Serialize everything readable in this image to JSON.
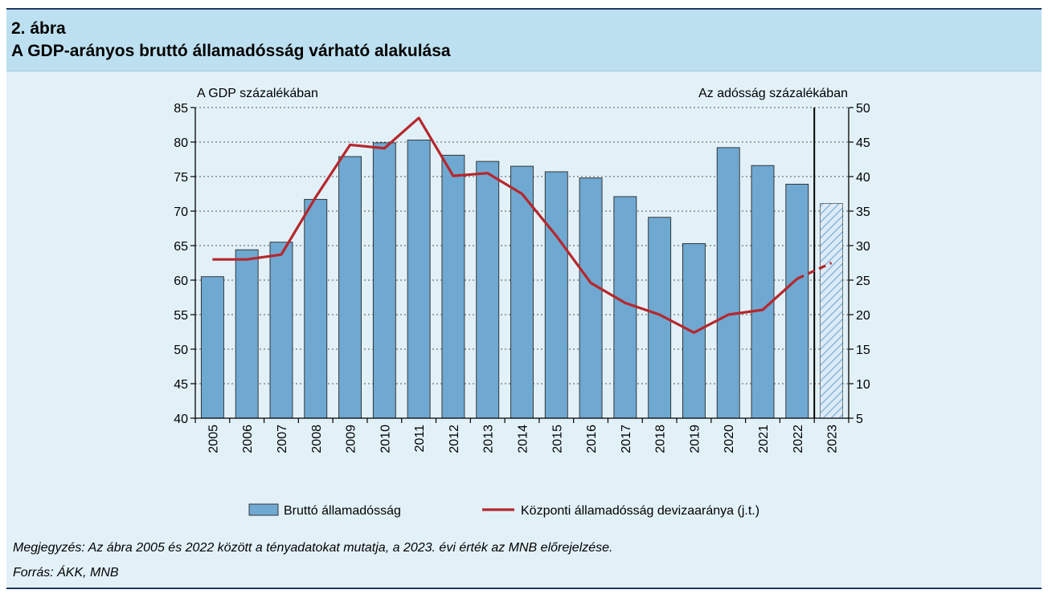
{
  "figure": {
    "number": "2. ábra",
    "title": "A GDP-arányos bruttó államadósság várható alakulása"
  },
  "chart_data": {
    "type": "bar",
    "categories": [
      "2005",
      "2006",
      "2007",
      "2008",
      "2009",
      "2010",
      "2011",
      "2012",
      "2013",
      "2014",
      "2015",
      "2016",
      "2017",
      "2018",
      "2019",
      "2020",
      "2021",
      "2022",
      "2023"
    ],
    "left_axis": {
      "label": "A GDP százalékában",
      "ylim": [
        40,
        85
      ],
      "ticks": [
        40,
        45,
        50,
        55,
        60,
        65,
        70,
        75,
        80,
        85
      ]
    },
    "right_axis": {
      "label": "Az adósság százalékában",
      "ylim": [
        5,
        50
      ],
      "ticks": [
        5,
        10,
        15,
        20,
        25,
        30,
        35,
        40,
        45,
        50
      ]
    },
    "series": [
      {
        "name": "Bruttó államadósság",
        "type": "bar",
        "axis": "left",
        "values": [
          60.5,
          64.4,
          65.5,
          71.7,
          77.9,
          79.9,
          80.3,
          78.1,
          77.2,
          76.5,
          75.7,
          74.8,
          72.1,
          69.1,
          65.3,
          79.2,
          76.6,
          73.9,
          71.1
        ],
        "forecast_from": "2023",
        "color": "#6fa8d0",
        "forecast_color": "#bcd8ee"
      },
      {
        "name": "Központi államadósság devizaaránya (j.t.)",
        "type": "line",
        "axis": "right",
        "values": [
          28.0,
          28.0,
          28.7,
          37.0,
          44.6,
          44.1,
          48.5,
          40.1,
          40.5,
          37.5,
          31.4,
          24.6,
          21.7,
          20.0,
          17.4,
          20.0,
          20.7,
          25.2,
          27.5
        ],
        "forecast_from": "2022",
        "color": "#b5272d"
      }
    ],
    "forecast_divider_after": "2022",
    "grid": "horizontal dotted",
    "legend_position": "bottom"
  },
  "footer": {
    "note": "Megjegyzés: Az ábra 2005 és 2022 között a tényadatokat mutatja, a 2023. évi érték az MNB előrejelzése.",
    "source": "Forrás: ÁKK, MNB"
  }
}
